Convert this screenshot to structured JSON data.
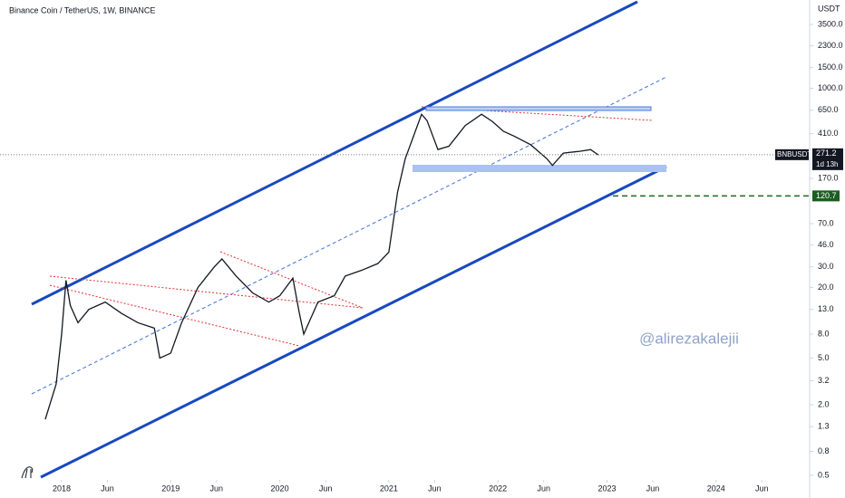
{
  "chart_data": {
    "type": "line",
    "title": "Binance Coin / TetherUS, 1W, BINANCE",
    "y_axis_label": "USDT",
    "watermark": "@alirezakalejii",
    "symbol": "BNBUSDT",
    "last_price": {
      "value": 271.2,
      "label": "271.2"
    },
    "countdown": "1d 13h",
    "target_level": {
      "value": 120.7,
      "label": "120.7"
    },
    "log_scale": true,
    "grid": false,
    "color": "#131722",
    "xlim": [
      2017.435,
      2024.858
    ],
    "xticks": [
      {
        "value": 2018,
        "label": "2018"
      },
      {
        "value": 2018.42,
        "label": "Jun"
      },
      {
        "value": 2019,
        "label": "2019"
      },
      {
        "value": 2019.42,
        "label": "Jun"
      },
      {
        "value": 2020,
        "label": "2020"
      },
      {
        "value": 2020.42,
        "label": "Jun"
      },
      {
        "value": 2021,
        "label": "2021"
      },
      {
        "value": 2021.42,
        "label": "Jun"
      },
      {
        "value": 2022,
        "label": "2022"
      },
      {
        "value": 2022.42,
        "label": "Jun"
      },
      {
        "value": 2023,
        "label": "2023"
      },
      {
        "value": 2023.42,
        "label": "Jun"
      },
      {
        "value": 2024,
        "label": "2024"
      },
      {
        "value": 2024.42,
        "label": "Jun"
      }
    ],
    "ylim": [
      0.32,
      5660
    ],
    "yticks": [
      {
        "value": 0.5,
        "label": "0.5"
      },
      {
        "value": 0.8,
        "label": "0.8"
      },
      {
        "value": 1.3,
        "label": "1.3"
      },
      {
        "value": 2,
        "label": "2.0"
      },
      {
        "value": 3.2,
        "label": "3.2"
      },
      {
        "value": 5,
        "label": "5.0"
      },
      {
        "value": 8,
        "label": "8.0"
      },
      {
        "value": 13,
        "label": "13.0"
      },
      {
        "value": 20,
        "label": "20.0"
      },
      {
        "value": 30,
        "label": "30.0"
      },
      {
        "value": 46,
        "label": "46.0"
      },
      {
        "value": 70,
        "label": "70.0"
      },
      {
        "value": 170,
        "label": "170.0"
      },
      {
        "value": 410,
        "label": "410.0"
      },
      {
        "value": 650,
        "label": "650.0"
      },
      {
        "value": 1000,
        "label": "1000.0"
      },
      {
        "value": 1500,
        "label": "1500.0"
      },
      {
        "value": 2300,
        "label": "2300.0"
      },
      {
        "value": 3500,
        "label": "3500.0"
      }
    ],
    "x": [
      2017.85,
      2017.95,
      2018.0,
      2018.04,
      2018.08,
      2018.15,
      2018.25,
      2018.4,
      2018.55,
      2018.7,
      2018.85,
      2018.9,
      2019.0,
      2019.1,
      2019.25,
      2019.4,
      2019.47,
      2019.6,
      2019.75,
      2019.9,
      2020.0,
      2020.12,
      2020.18,
      2020.22,
      2020.35,
      2020.5,
      2020.6,
      2020.75,
      2020.9,
      2021.0,
      2021.08,
      2021.15,
      2021.3,
      2021.35,
      2021.45,
      2021.55,
      2021.7,
      2021.85,
      2021.95,
      2022.05,
      2022.15,
      2022.3,
      2022.45,
      2022.5,
      2022.6,
      2022.75,
      2022.85,
      2022.92
    ],
    "values": [
      1.5,
      3.0,
      8,
      23,
      14,
      10,
      13,
      15,
      12,
      10,
      9,
      5,
      5.5,
      10,
      20,
      30,
      35,
      25,
      18,
      15,
      17,
      24,
      12,
      8,
      15,
      17,
      25,
      28,
      32,
      40,
      130,
      250,
      600,
      530,
      300,
      320,
      480,
      600,
      520,
      430,
      390,
      330,
      250,
      220,
      280,
      290,
      300,
      270
    ]
  }
}
